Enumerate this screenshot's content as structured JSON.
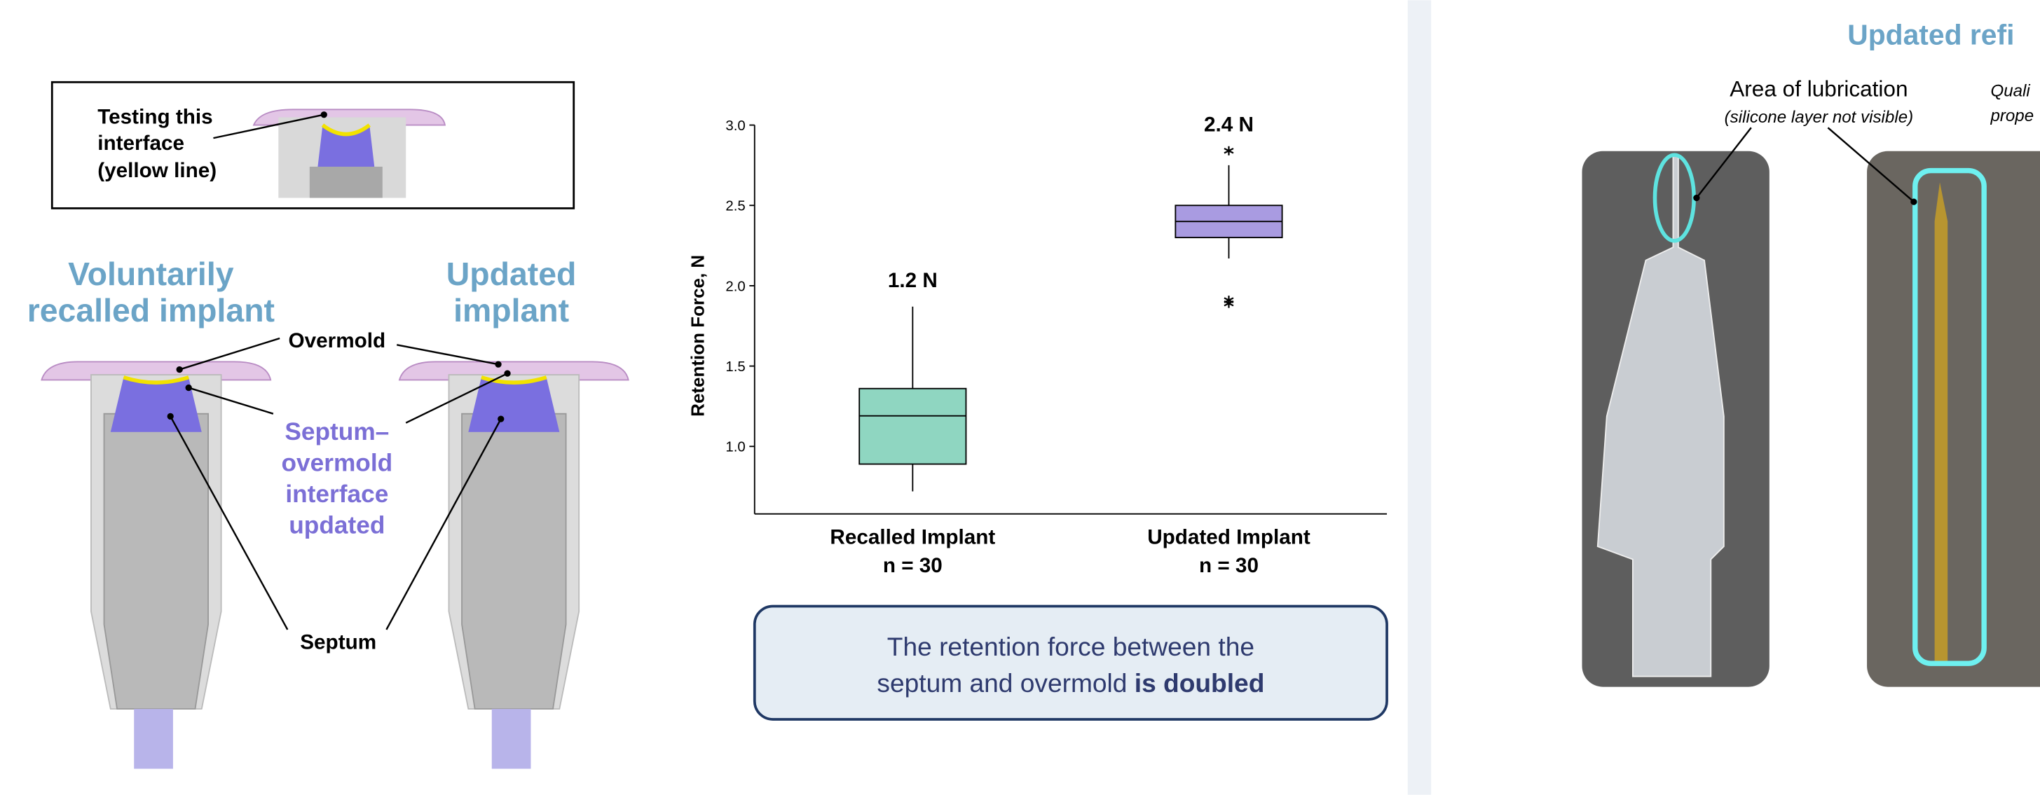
{
  "chart_data": {
    "type": "box",
    "y_label": "Retention Force, N",
    "categories": [
      "Recalled Implant",
      "Updated Implant"
    ],
    "sample_sizes": [
      "n = 30",
      "n = 30"
    ],
    "ylim": [
      0.58,
      3.0
    ],
    "yticks": [
      {
        "value": 1,
        "label": "1.0"
      },
      {
        "value": 1.5,
        "label": "1.5"
      },
      {
        "value": 2,
        "label": "2.0"
      },
      {
        "value": 2.5,
        "label": "2.5"
      },
      {
        "value": 3,
        "label": "3.0"
      }
    ],
    "boxes": [
      {
        "whisker_low": 0.72,
        "q1": 0.89,
        "median": 1.19,
        "q3": 1.36,
        "whisker_high": 1.87,
        "outliers": [],
        "label": "1.2 N",
        "color": "#8fd6c1"
      },
      {
        "whisker_low": 2.17,
        "q1": 2.3,
        "median": 2.4,
        "q3": 2.5,
        "whisker_high": 2.75,
        "outliers": [
          2.84,
          1.91,
          1.89
        ],
        "label": "2.4 N",
        "color": "#a99be1"
      }
    ]
  },
  "test_box": [
    "Testing this",
    "interface",
    "(yellow line)"
  ],
  "headings": {
    "recalled": [
      "Voluntarily",
      "recalled implant"
    ],
    "updated": [
      "Updated",
      "implant"
    ]
  },
  "labels": {
    "overmold": "Overmold",
    "interface": [
      "Septum–",
      "overmold",
      "interface",
      "updated"
    ],
    "septum": "Septum"
  },
  "callout": {
    "line1": "The retention force between the",
    "line2": "septum and overmold ",
    "bold": "is doubled"
  },
  "right_panel": {
    "title": "Updated refi",
    "area": "Area of lubrication",
    "area_note": "(silicone layer not visible)",
    "cut_text": [
      "Quali",
      "prope"
    ]
  }
}
